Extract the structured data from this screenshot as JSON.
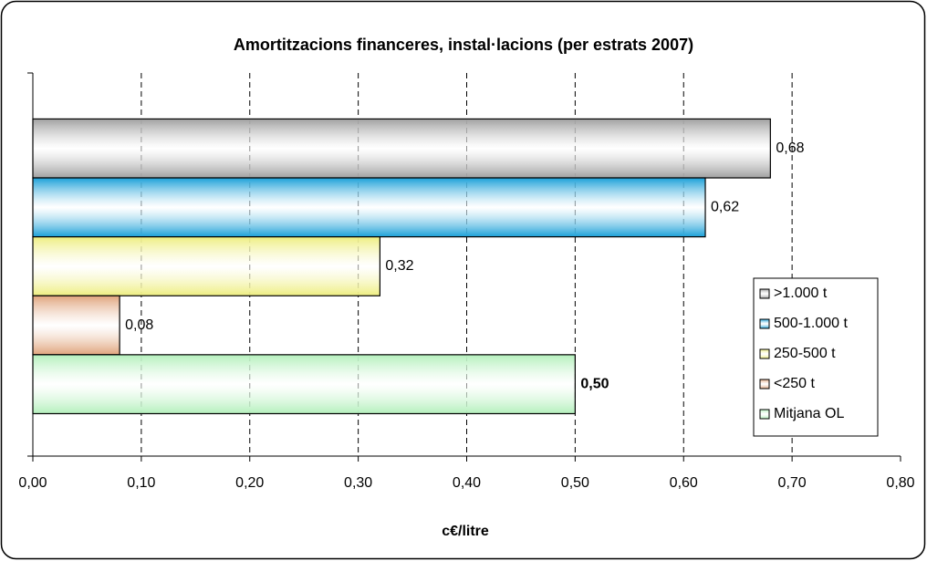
{
  "chart_data": {
    "type": "bar",
    "orientation": "horizontal",
    "title": "Amortitzacions financeres, instal·lacions (per estrats 2007)",
    "x_label": "c€/litre",
    "xlim": [
      0,
      0.8
    ],
    "xticks": [
      {
        "value": 0,
        "label": "0,00"
      },
      {
        "value": 0.1,
        "label": "0,10"
      },
      {
        "value": 0.2,
        "label": "0,20"
      },
      {
        "value": 0.3,
        "label": "0,30"
      },
      {
        "value": 0.4,
        "label": "0,40"
      },
      {
        "value": 0.5,
        "label": "0,50"
      },
      {
        "value": 0.6,
        "label": "0,60"
      },
      {
        "value": 0.7,
        "label": "0,70"
      },
      {
        "value": 0.8,
        "label": "0,80"
      }
    ],
    "grid": true,
    "legend": "right",
    "series": [
      {
        "name": ">1.000 t",
        "color": "#a0a0a0",
        "values": [
          0.68
        ],
        "value_labels": [
          "0,68"
        ]
      },
      {
        "name": "500-1.000 t",
        "color": "#1aa0d8",
        "values": [
          0.62
        ],
        "value_labels": [
          "0,62"
        ]
      },
      {
        "name": "250-500 t",
        "color": "#eeee80",
        "values": [
          0.32
        ],
        "value_labels": [
          "0,32"
        ]
      },
      {
        "name": "<250 t",
        "color": "#e0a47c",
        "values": [
          0.08
        ],
        "value_labels": [
          "0,08"
        ]
      },
      {
        "name": "Mitjana OL",
        "color": "#b4f0bc",
        "values": [
          0.5
        ],
        "value_labels": [
          "0,50"
        ],
        "bold_label": true
      }
    ]
  }
}
